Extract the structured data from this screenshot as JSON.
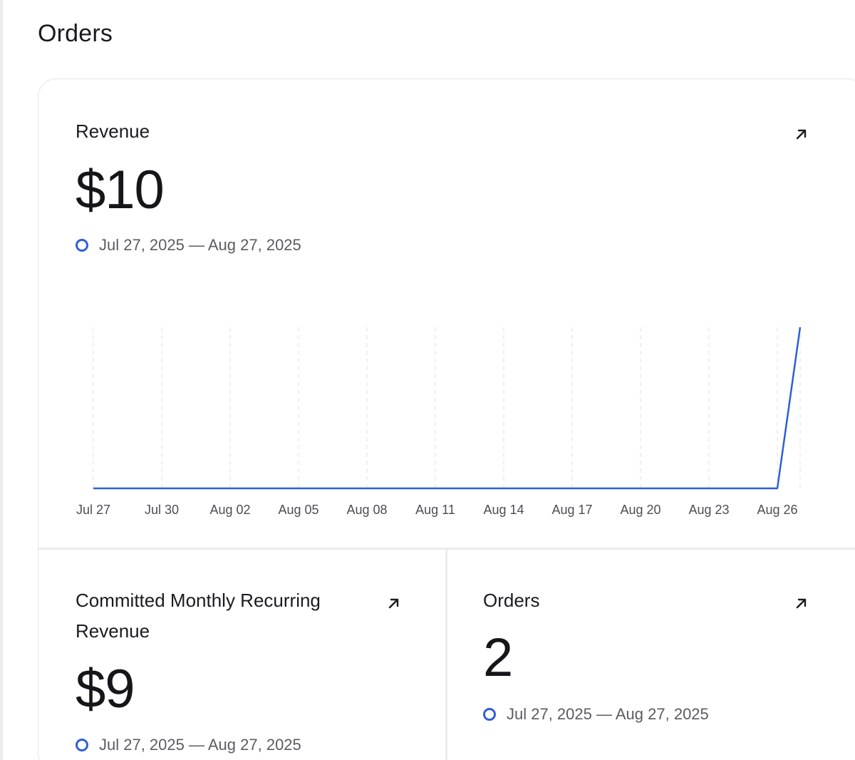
{
  "page": {
    "title": "Orders"
  },
  "revenue_card": {
    "title": "Revenue",
    "value": "$10",
    "range": "Jul 27, 2025 — Aug 27, 2025",
    "open_icon": "arrow-up-right-icon"
  },
  "cmrr_card": {
    "title_line1": "Committed Monthly Recurring",
    "title_line2": "Revenue",
    "value": "$9",
    "range": "Jul 27, 2025 — Aug 27, 2025",
    "open_icon": "arrow-up-right-icon"
  },
  "orders_card": {
    "title": "Orders",
    "value": "2",
    "range": "Jul 27, 2025 — Aug 27, 2025",
    "open_icon": "arrow-up-right-icon"
  },
  "colors": {
    "accent": "#2f5fd6",
    "text": "#1b1b1f",
    "muted": "#5b5b63",
    "border": "#e6e6ea"
  },
  "chart_data": {
    "type": "line",
    "x": [
      "Jul 27",
      "Jul 28",
      "Jul 29",
      "Jul 30",
      "Jul 31",
      "Aug 01",
      "Aug 02",
      "Aug 03",
      "Aug 04",
      "Aug 05",
      "Aug 06",
      "Aug 07",
      "Aug 08",
      "Aug 09",
      "Aug 10",
      "Aug 11",
      "Aug 12",
      "Aug 13",
      "Aug 14",
      "Aug 15",
      "Aug 16",
      "Aug 17",
      "Aug 18",
      "Aug 19",
      "Aug 20",
      "Aug 21",
      "Aug 22",
      "Aug 23",
      "Aug 24",
      "Aug 25",
      "Aug 26",
      "Aug 27"
    ],
    "tick_labels": [
      "Jul 27",
      "Jul 30",
      "Aug 02",
      "Aug 05",
      "Aug 08",
      "Aug 11",
      "Aug 14",
      "Aug 17",
      "Aug 20",
      "Aug 23",
      "Aug 26"
    ],
    "series": [
      {
        "values": [
          0,
          0,
          0,
          0,
          0,
          0,
          0,
          0,
          0,
          0,
          0,
          0,
          0,
          0,
          0,
          0,
          0,
          0,
          0,
          0,
          0,
          0,
          0,
          0,
          0,
          0,
          0,
          0,
          0,
          0,
          0,
          10
        ]
      }
    ],
    "ylim": [
      0,
      10
    ],
    "grid": "vertical-dashed",
    "title": "",
    "xlabel": "",
    "ylabel": ""
  }
}
